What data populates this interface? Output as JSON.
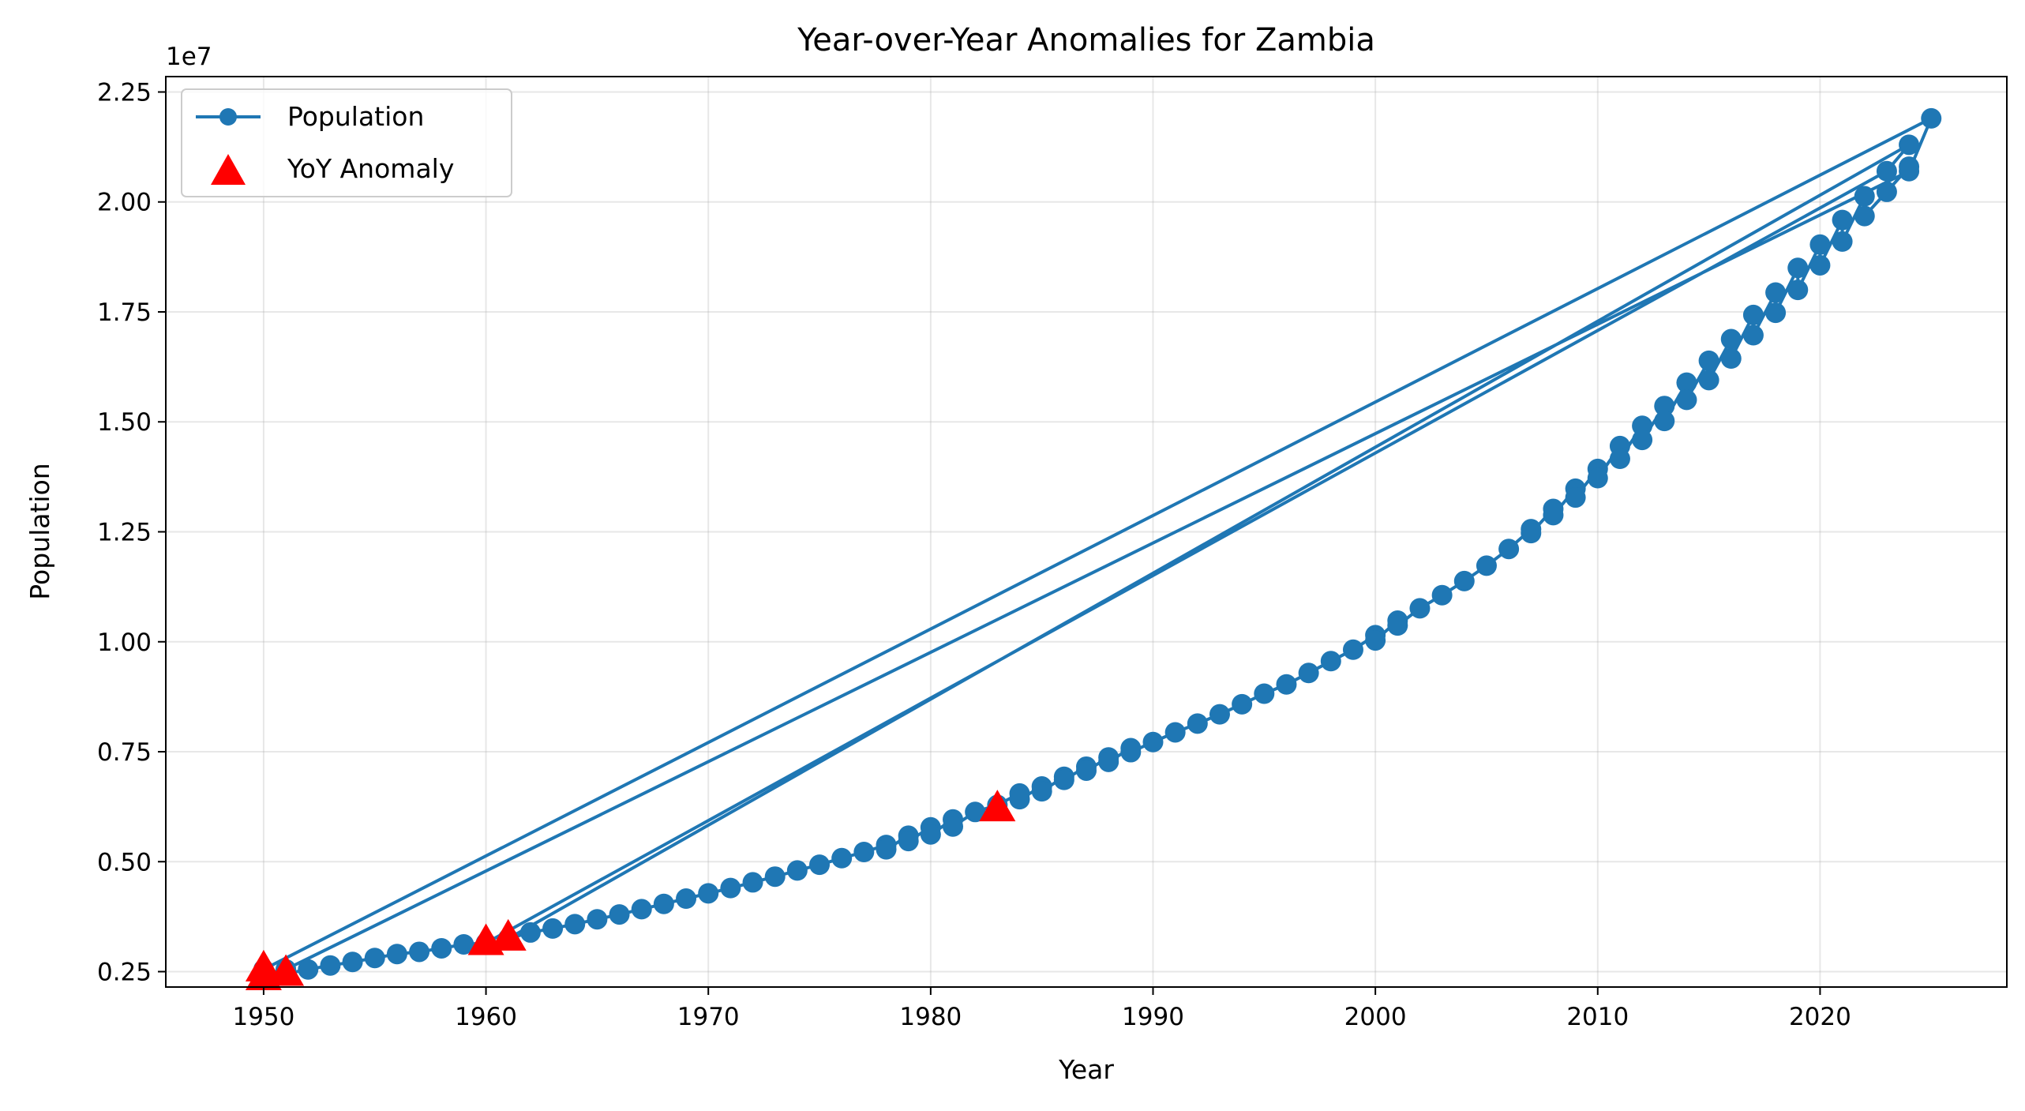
{
  "chart_data": {
    "type": "line",
    "title": "Year-over-Year Anomalies for Zambia",
    "xlabel": "Year",
    "ylabel": "Population",
    "y_offset_label": "1e7",
    "xlim": [
      1945.6,
      2028.4
    ],
    "ylim": [
      2150000,
      22850000
    ],
    "x_ticks": [
      1950,
      1960,
      1970,
      1980,
      1990,
      2000,
      2010,
      2020
    ],
    "y_ticks": [
      2500000,
      5000000,
      7500000,
      10000000,
      12500000,
      15000000,
      17500000,
      20000000,
      22500000
    ],
    "y_tick_labels": [
      "0.25",
      "0.50",
      "0.75",
      "1.00",
      "1.25",
      "1.50",
      "1.75",
      "2.00",
      "2.25"
    ],
    "grid": true,
    "legend_position": "top-left",
    "colors": {
      "line": "#1f77b4",
      "anomaly": "#ff0000"
    },
    "series": [
      {
        "name": "Population",
        "style": "line-with-circle-markers",
        "points": [
          [
            1951,
            2550000
          ],
          [
            1950,
            2350000
          ],
          [
            1951,
            2550000
          ],
          [
            2024,
            20700000
          ],
          [
            2025,
            21900000
          ],
          [
            1950,
            2550000
          ],
          [
            1951,
            2450000
          ],
          [
            1952,
            2550000
          ],
          [
            1953,
            2640000
          ],
          [
            1954,
            2720000
          ],
          [
            1955,
            2810000
          ],
          [
            1956,
            2900000
          ],
          [
            1957,
            2950000
          ],
          [
            1958,
            3030000
          ],
          [
            1959,
            3120000
          ],
          [
            1960,
            3150000
          ],
          [
            2023,
            20700000
          ],
          [
            2024,
            21300000
          ],
          [
            1961,
            3250000
          ],
          [
            1962,
            3390000
          ],
          [
            1963,
            3480000
          ],
          [
            1964,
            3580000
          ],
          [
            1965,
            3690000
          ],
          [
            1966,
            3800000
          ],
          [
            1967,
            3920000
          ],
          [
            1968,
            4040000
          ],
          [
            1969,
            4160000
          ],
          [
            1970,
            4280000
          ],
          [
            1971,
            4400000
          ],
          [
            1972,
            4530000
          ],
          [
            1973,
            4660000
          ],
          [
            1974,
            4800000
          ],
          [
            1975,
            4930000
          ],
          [
            1976,
            5080000
          ],
          [
            1977,
            5220000
          ],
          [
            1978,
            5380000
          ],
          [
            1978,
            5280000
          ],
          [
            1979,
            5590000
          ],
          [
            1979,
            5470000
          ],
          [
            1980,
            5780000
          ],
          [
            1980,
            5620000
          ],
          [
            1981,
            5960000
          ],
          [
            1981,
            5800000
          ],
          [
            1982,
            6130000
          ],
          [
            1983,
            6290000
          ],
          [
            1984,
            6550000
          ],
          [
            1984,
            6420000
          ],
          [
            1985,
            6710000
          ],
          [
            1985,
            6600000
          ],
          [
            1986,
            6930000
          ],
          [
            1986,
            6860000
          ],
          [
            1987,
            7160000
          ],
          [
            1987,
            7070000
          ],
          [
            1988,
            7370000
          ],
          [
            1988,
            7270000
          ],
          [
            1989,
            7580000
          ],
          [
            1989,
            7490000
          ],
          [
            1990,
            7720000
          ],
          [
            1991,
            7940000
          ],
          [
            1992,
            8140000
          ],
          [
            1993,
            8350000
          ],
          [
            1994,
            8580000
          ],
          [
            1995,
            8820000
          ],
          [
            1996,
            9030000
          ],
          [
            1997,
            9290000
          ],
          [
            1998,
            9560000
          ],
          [
            1999,
            9820000
          ],
          [
            2000,
            10150000
          ],
          [
            2000,
            10030000
          ],
          [
            2001,
            10480000
          ],
          [
            2001,
            10370000
          ],
          [
            2002,
            10760000
          ],
          [
            2003,
            11060000
          ],
          [
            2004,
            11380000
          ],
          [
            2005,
            11730000
          ],
          [
            2006,
            12110000
          ],
          [
            2007,
            12560000
          ],
          [
            2007,
            12470000
          ],
          [
            2008,
            13020000
          ],
          [
            2008,
            12880000
          ],
          [
            2009,
            13480000
          ],
          [
            2009,
            13280000
          ],
          [
            2010,
            13930000
          ],
          [
            2010,
            13720000
          ],
          [
            2011,
            14450000
          ],
          [
            2011,
            14160000
          ],
          [
            2012,
            14910000
          ],
          [
            2012,
            14590000
          ],
          [
            2013,
            15360000
          ],
          [
            2013,
            15020000
          ],
          [
            2014,
            15890000
          ],
          [
            2014,
            15500000
          ],
          [
            2015,
            16390000
          ],
          [
            2015,
            15950000
          ],
          [
            2016,
            16880000
          ],
          [
            2016,
            16440000
          ],
          [
            2017,
            17430000
          ],
          [
            2017,
            16970000
          ],
          [
            2018,
            17940000
          ],
          [
            2018,
            17480000
          ],
          [
            2019,
            18500000
          ],
          [
            2019,
            18000000
          ],
          [
            2020,
            19030000
          ],
          [
            2020,
            18560000
          ],
          [
            2021,
            19590000
          ],
          [
            2021,
            19100000
          ],
          [
            2022,
            20130000
          ],
          [
            2022,
            19680000
          ],
          [
            2023,
            20230000
          ],
          [
            2024,
            20800000
          ]
        ]
      },
      {
        "name": "YoY Anomaly",
        "style": "triangle-markers",
        "points": [
          [
            1950,
            2350000
          ],
          [
            1950,
            2550000
          ],
          [
            1951,
            2450000
          ],
          [
            1960,
            3150000
          ],
          [
            1961,
            3250000
          ],
          [
            1983,
            6190000
          ]
        ]
      }
    ]
  }
}
